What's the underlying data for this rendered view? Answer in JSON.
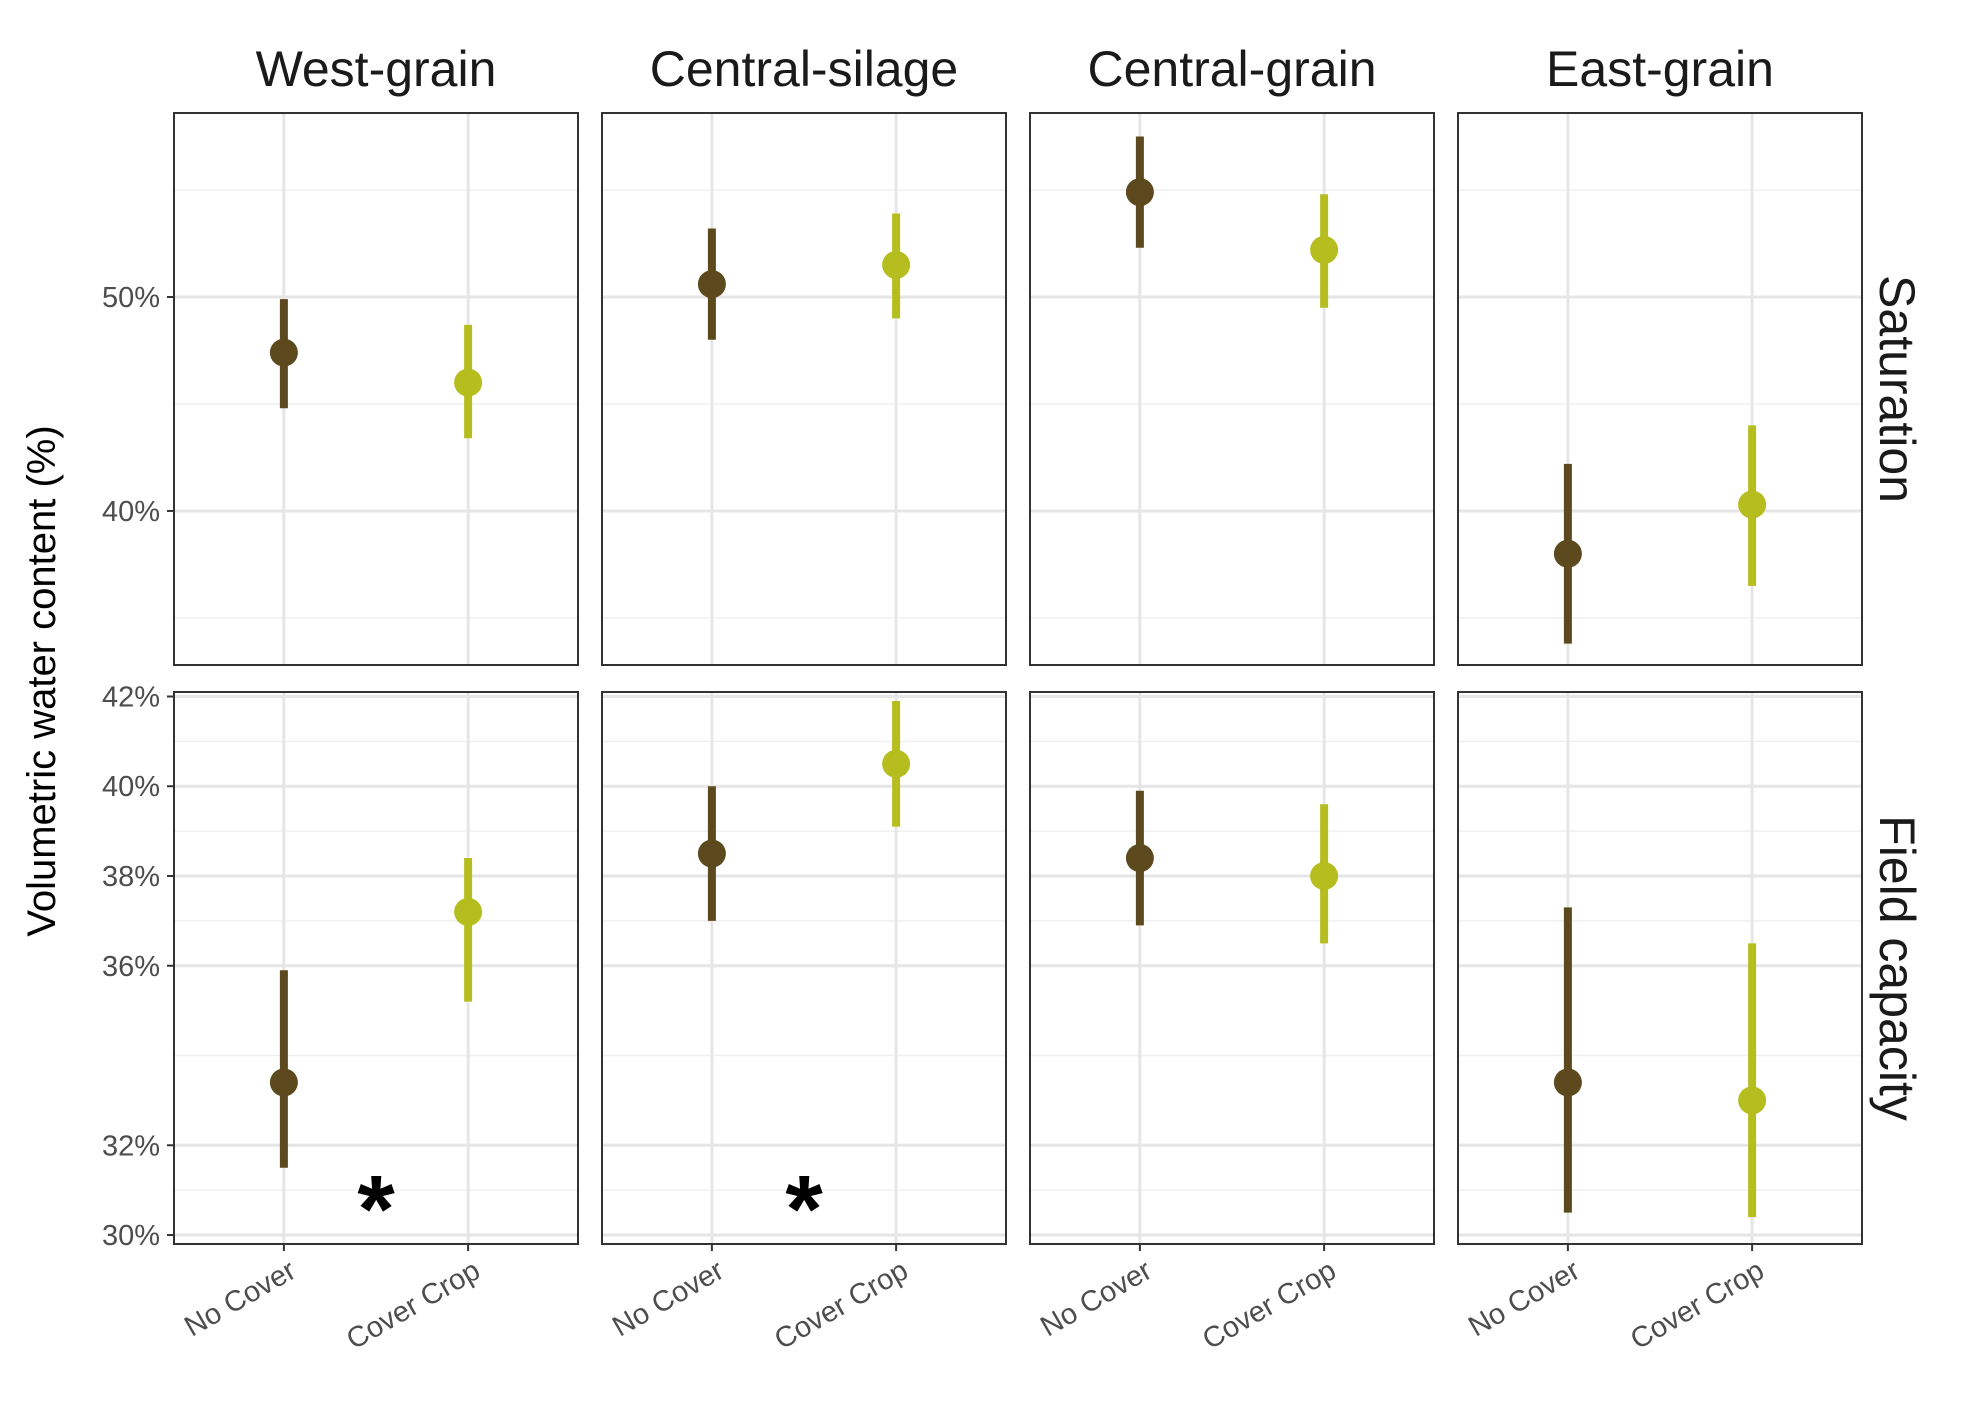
{
  "chart_data": {
    "type": "scatter",
    "subtype": "point-range facet grid",
    "ylabel": "Volumetric water content (%)",
    "xlabel": "",
    "grid": true,
    "legend": "none",
    "columns": [
      "West-grain",
      "Central-silage",
      "Central-grain",
      "East-grain"
    ],
    "categories": [
      "No Cover",
      "Cover Crop"
    ],
    "colors": {
      "No Cover": "#5c4a1e",
      "Cover Crop": "#b5bd1f"
    },
    "rows": [
      {
        "label": "Saturation",
        "ylim": [
          32.8,
          58.6
        ],
        "ticks": [
          40,
          50
        ],
        "tick_labels": [
          "40%",
          "50%"
        ],
        "minor_ticks": [
          35,
          45,
          55
        ],
        "panels": [
          {
            "facet": "West-grain",
            "significance": "",
            "points": [
              {
                "category": "No Cover",
                "y": 47.4,
                "low": 44.8,
                "high": 49.9
              },
              {
                "category": "Cover Crop",
                "y": 46.0,
                "low": 43.4,
                "high": 48.7
              }
            ]
          },
          {
            "facet": "Central-silage",
            "significance": "",
            "points": [
              {
                "category": "No Cover",
                "y": 50.6,
                "low": 48.0,
                "high": 53.2
              },
              {
                "category": "Cover Crop",
                "y": 51.5,
                "low": 49.0,
                "high": 53.9
              }
            ]
          },
          {
            "facet": "Central-grain",
            "significance": "",
            "points": [
              {
                "category": "No Cover",
                "y": 54.9,
                "low": 52.3,
                "high": 57.5
              },
              {
                "category": "Cover Crop",
                "y": 52.2,
                "low": 49.5,
                "high": 54.8
              }
            ]
          },
          {
            "facet": "East-grain",
            "significance": "",
            "points": [
              {
                "category": "No Cover",
                "y": 38.0,
                "low": 33.8,
                "high": 42.2
              },
              {
                "category": "Cover Crop",
                "y": 40.3,
                "low": 36.5,
                "high": 44.0
              }
            ]
          }
        ]
      },
      {
        "label": "Field capacity",
        "ylim": [
          29.8,
          42.1
        ],
        "ticks": [
          30,
          32,
          36,
          38,
          40,
          42
        ],
        "tick_labels": [
          "30%",
          "32%",
          "36%",
          "38%",
          "40%",
          "42%"
        ],
        "minor_ticks": [
          31,
          34,
          37,
          39,
          41
        ],
        "panels": [
          {
            "facet": "West-grain",
            "significance": "*",
            "points": [
              {
                "category": "No Cover",
                "y": 33.4,
                "low": 31.5,
                "high": 35.9
              },
              {
                "category": "Cover Crop",
                "y": 37.2,
                "low": 35.2,
                "high": 38.4
              }
            ]
          },
          {
            "facet": "Central-silage",
            "significance": "*",
            "points": [
              {
                "category": "No Cover",
                "y": 38.5,
                "low": 37.0,
                "high": 40.0
              },
              {
                "category": "Cover Crop",
                "y": 40.5,
                "low": 39.1,
                "high": 41.9
              }
            ]
          },
          {
            "facet": "Central-grain",
            "significance": "",
            "points": [
              {
                "category": "No Cover",
                "y": 38.4,
                "low": 36.9,
                "high": 39.9
              },
              {
                "category": "Cover Crop",
                "y": 38.0,
                "low": 36.5,
                "high": 39.6
              }
            ]
          },
          {
            "facet": "East-grain",
            "significance": "",
            "points": [
              {
                "category": "No Cover",
                "y": 33.4,
                "low": 30.5,
                "high": 37.3
              },
              {
                "category": "Cover Crop",
                "y": 33.0,
                "low": 30.4,
                "high": 36.5
              }
            ]
          }
        ]
      }
    ]
  }
}
